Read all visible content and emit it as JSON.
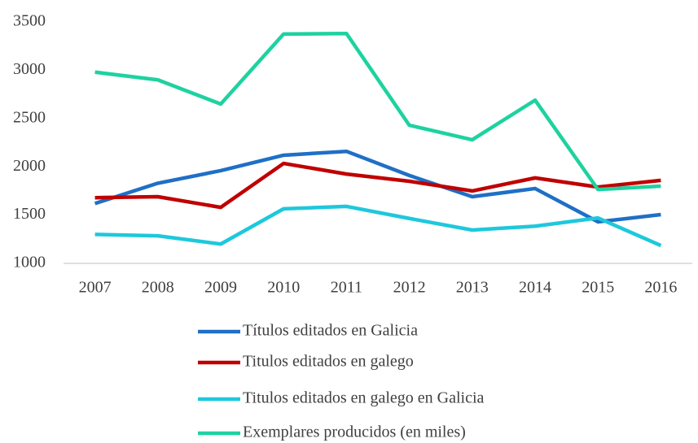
{
  "chart_data": {
    "type": "line",
    "categories": [
      "2007",
      "2008",
      "2009",
      "2010",
      "2011",
      "2012",
      "2013",
      "2014",
      "2015",
      "2016"
    ],
    "series": [
      {
        "name": "Títulos editados en Galicia",
        "color": "#1f6fc6",
        "values": [
          1620,
          1830,
          1960,
          2120,
          2160,
          1910,
          1690,
          1775,
          1430,
          1505
        ]
      },
      {
        "name": "Titulos editados en galego",
        "color": "#c00000",
        "values": [
          1680,
          1690,
          1580,
          2035,
          1925,
          1850,
          1750,
          1885,
          1790,
          1860
        ]
      },
      {
        "name": "Titulos editados en galego en Galicia",
        "color": "#1ec8dc",
        "values": [
          1300,
          1285,
          1200,
          1565,
          1590,
          1465,
          1345,
          1385,
          1470,
          1185
        ]
      },
      {
        "name": "Exemplares producidos (en miles)",
        "color": "#1ed2a0",
        "values": [
          2980,
          2900,
          2650,
          3375,
          3380,
          2430,
          2280,
          2690,
          1765,
          1800
        ]
      }
    ],
    "ylim": [
      1000,
      3500
    ],
    "yticks": [
      1000,
      1500,
      2000,
      2500,
      3000,
      3500
    ],
    "grid": false,
    "legend": "bottom"
  }
}
